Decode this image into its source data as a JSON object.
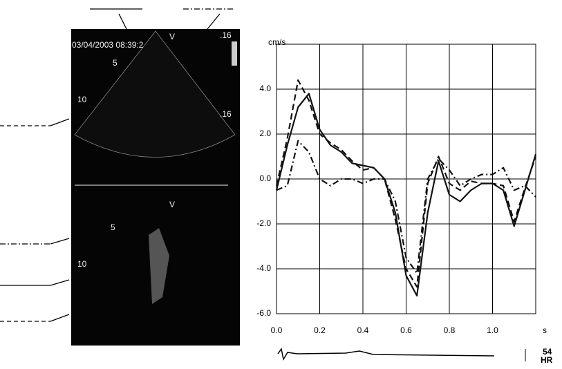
{
  "chart_data": {
    "type": "line",
    "y_unit": "cm/s",
    "x_unit": "s",
    "x": [
      0,
      0.05,
      0.1,
      0.15,
      0.2,
      0.25,
      0.3,
      0.35,
      0.4,
      0.45,
      0.5,
      0.55,
      0.6,
      0.65,
      0.7,
      0.75,
      0.8,
      0.85,
      0.9,
      0.95,
      1.0,
      1.05,
      1.1,
      1.15,
      1.2
    ],
    "series": [
      {
        "color": "#111",
        "dash": "solid",
        "values": [
          -0.5,
          1.5,
          3.2,
          3.8,
          2.2,
          1.5,
          1.2,
          0.7,
          0.6,
          0.5,
          0.0,
          -1.5,
          -4.3,
          -5.2,
          -1.5,
          0.8,
          -0.7,
          -1.0,
          -0.5,
          -0.2,
          -0.2,
          -0.5,
          -2.1,
          -0.5,
          1.1
        ]
      },
      {
        "color": "#111",
        "dash": "dashed",
        "values": [
          -0.3,
          1.8,
          4.4,
          3.5,
          2.0,
          1.6,
          1.3,
          0.8,
          0.4,
          0.5,
          0.0,
          -1.8,
          -4.0,
          -4.8,
          -0.2,
          1.0,
          -0.2,
          -0.5,
          -0.1,
          -0.2,
          -0.2,
          -0.3,
          -1.9,
          -0.4,
          1.0
        ]
      },
      {
        "color": "#111",
        "dash": "dashdot",
        "values": [
          -0.5,
          -0.3,
          1.7,
          1.2,
          0.0,
          -0.3,
          0.0,
          0.0,
          -0.2,
          0.0,
          0.0,
          -1.0,
          -3.5,
          -4.2,
          0.0,
          0.9,
          0.4,
          -0.3,
          0.0,
          0.2,
          0.2,
          0.5,
          -0.5,
          -0.3,
          -0.8
        ]
      }
    ],
    "xlim": [
      0,
      1.2
    ],
    "ylim": [
      -6,
      6
    ],
    "xticks": [
      {
        "value": 0,
        "label": "0.0"
      },
      {
        "value": 0.2,
        "label": "0.2"
      },
      {
        "value": 0.4,
        "label": "0.4"
      },
      {
        "value": 0.6,
        "label": "0.6"
      },
      {
        "value": 0.8,
        "label": "0.8"
      },
      {
        "value": 1.0,
        "label": "1.0"
      }
    ],
    "yticks": [
      {
        "value": 4,
        "label": "4.0"
      },
      {
        "value": 2,
        "label": "2.0"
      },
      {
        "value": 0,
        "label": "0.0"
      },
      {
        "value": -2,
        "label": "-2.0"
      },
      {
        "value": -4,
        "label": "-4.0"
      },
      {
        "value": -6,
        "label": "-6.0"
      }
    ],
    "grid": true
  },
  "ultrasound": {
    "timestamp": "03/04/2003 08:39:2",
    "top_mark": "V",
    "scale_top": ".16",
    "depth_5": "5",
    "depth_10": "10",
    "scale_bottom": ".16",
    "lower_mark": "V",
    "lower_depth_5": "5",
    "lower_depth_10": "10"
  },
  "ecg": {
    "rate": "54",
    "label": "HR"
  }
}
